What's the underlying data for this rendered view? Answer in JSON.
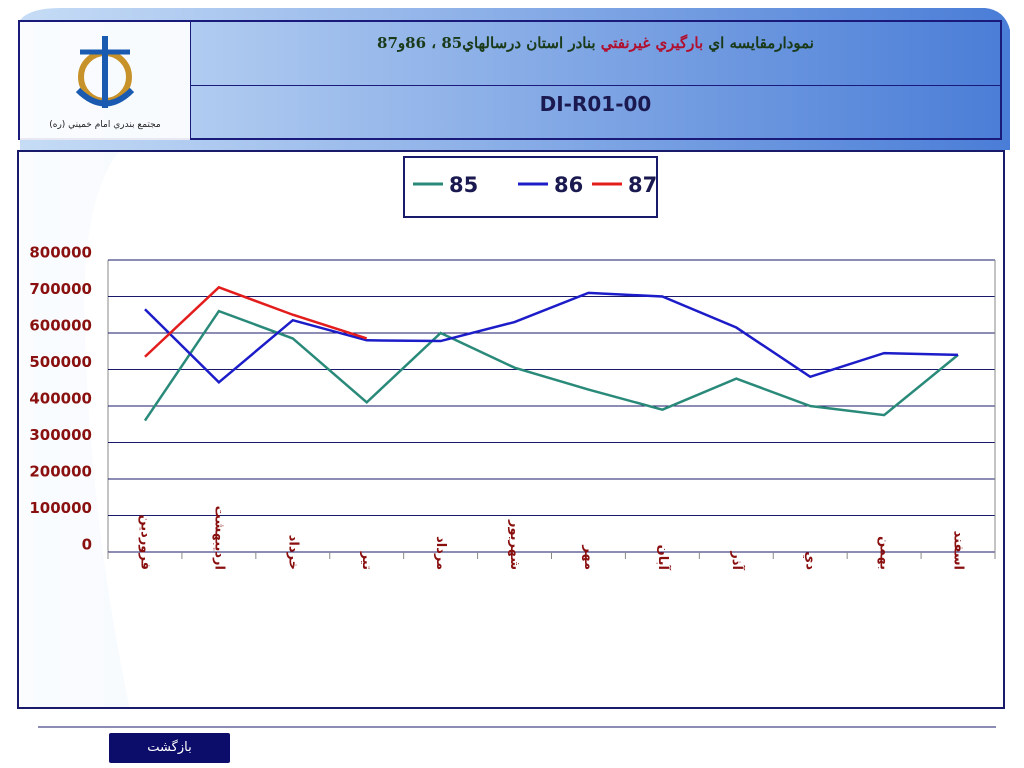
{
  "header": {
    "logo_caption": "مجتمع بندري امام خميني (ره)",
    "title_parts": [
      "نمودارمقايسه اي ",
      "بارگيري غيرنفتي",
      " بنادر استان درسالهاي85 ، 86و87"
    ],
    "code": "DI-R01-00"
  },
  "chart_data": {
    "type": "line",
    "categories": [
      "فروردين",
      "ارديبهشت",
      "خرداد",
      "تير",
      "مرداد",
      "شهريور",
      "مهر",
      "آبان",
      "آذر",
      "دي",
      "بهمن",
      "اسفند"
    ],
    "series": [
      {
        "name": "85",
        "color": "#2a8a7a",
        "values": [
          360000,
          660000,
          585000,
          410000,
          600000,
          505000,
          445000,
          390000,
          475000,
          400000,
          375000,
          540000
        ]
      },
      {
        "name": "86",
        "color": "#1c1cc8",
        "values": [
          665000,
          465000,
          635000,
          580000,
          578000,
          630000,
          710000,
          700000,
          615000,
          480000,
          545000,
          540000
        ]
      },
      {
        "name": "87",
        "color": "#e31c1c",
        "values": [
          535000,
          725000,
          650000,
          585000,
          null,
          null,
          null,
          null,
          null,
          null,
          null,
          null
        ]
      }
    ],
    "ylim": [
      0,
      800000
    ],
    "yticks": [
      0,
      100000,
      200000,
      300000,
      400000,
      500000,
      600000,
      700000,
      800000
    ],
    "grid": true
  },
  "footer": {
    "back_button": "بازگشت"
  }
}
